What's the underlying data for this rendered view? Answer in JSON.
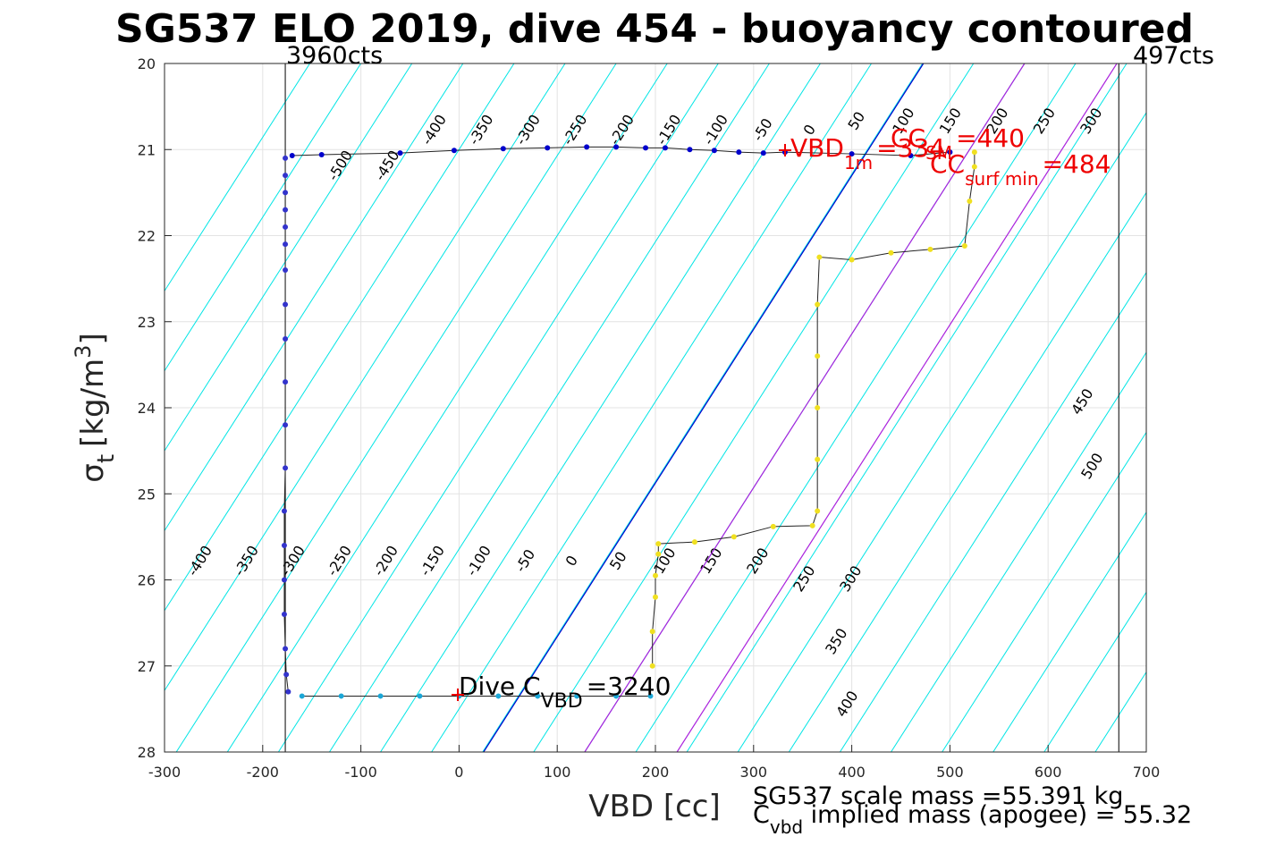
{
  "chart_data": {
    "type": "scatter",
    "title": "SG537 ELO 2019, dive 454 - buoyancy contoured",
    "xlabel": "VBD [cc]",
    "ylabel_main": "σ",
    "ylabel_sub": "t",
    "ylabel_unit": "[kg/m",
    "ylabel_sup": "3",
    "ylabel_close": "]",
    "xlim": [
      -300,
      700
    ],
    "ylim": [
      20,
      28
    ],
    "y_reversed": true,
    "grid": true,
    "xticks": [
      "-300",
      "-200",
      "-100",
      "0",
      "100",
      "200",
      "300",
      "400",
      "500",
      "600",
      "700"
    ],
    "yticks": [
      "20",
      "21",
      "22",
      "23",
      "24",
      "25",
      "26",
      "27",
      "28"
    ],
    "xtick_values": [
      -300,
      -200,
      -100,
      0,
      100,
      200,
      300,
      400,
      500,
      600,
      700
    ],
    "ytick_values": [
      20,
      21,
      22,
      23,
      24,
      25,
      26,
      27,
      28
    ],
    "vlines": [
      {
        "label": "3960cts",
        "x": -177
      },
      {
        "label": "497cts",
        "x": 672
      }
    ],
    "contour_levels_upper": [
      "-500",
      "-450",
      "-400",
      "-350",
      "-300",
      "-250",
      "-200",
      "-150",
      "-100",
      "-50",
      "0",
      "50",
      "100",
      "150",
      "200",
      "250",
      "300"
    ],
    "contour_levels_lower": [
      "-400",
      "-350",
      "-300",
      "-250",
      "-200",
      "-150",
      "-100",
      "-50",
      "0",
      "50",
      "100",
      "150",
      "200",
      "250",
      "300",
      "350",
      "400",
      "450",
      "500"
    ],
    "annotations": {
      "dive_c_main": "Dive C",
      "dive_c_sub": "VBD",
      "dive_c_val": "=3240",
      "vbd_main": "VBD",
      "vbd_sub": "1m",
      "vbd_val": "=334",
      "cc_sm_main": "CC",
      "cc_sm_sub": "SM",
      "cc_sm_val": "=440",
      "cc_surf_main": "CC",
      "cc_surf_sub": "surf min",
      "cc_surf_val": "=484",
      "scale_mass": "SG537 scale mass =55.391 kg",
      "implied_main": "C",
      "implied_sub": "vbd",
      "implied_text": " implied mass (apogee) = 55.32"
    },
    "series": [
      {
        "name": "",
        "color": "#0000cc",
        "points": [
          [
            -170,
            21.07
          ],
          [
            -140,
            21.06
          ],
          [
            -60,
            21.04
          ],
          [
            -5,
            21.01
          ],
          [
            45,
            20.99
          ],
          [
            90,
            20.98
          ],
          [
            130,
            20.97
          ],
          [
            160,
            20.97
          ],
          [
            190,
            20.98
          ],
          [
            210,
            20.98
          ],
          [
            235,
            21
          ],
          [
            260,
            21.01
          ],
          [
            285,
            21.03
          ],
          [
            310,
            21.04
          ],
          [
            332,
            21.03
          ],
          [
            400,
            21.05
          ],
          [
            460,
            21.07
          ],
          [
            500,
            21.03
          ]
        ]
      },
      {
        "name": "",
        "color": "#3333cc",
        "points": [
          [
            -177,
            21.1
          ],
          [
            -177,
            21.3
          ],
          [
            -177,
            21.5
          ],
          [
            -177,
            21.7
          ],
          [
            -177,
            21.9
          ],
          [
            -177,
            22.1
          ],
          [
            -177,
            22.4
          ],
          [
            -177,
            22.8
          ],
          [
            -177,
            23.2
          ],
          [
            -177,
            23.7
          ],
          [
            -177,
            24.2
          ],
          [
            -177,
            24.7
          ],
          [
            -178,
            25.2
          ],
          [
            -178,
            25.6
          ],
          [
            -178,
            26
          ],
          [
            -178,
            26.4
          ],
          [
            -177,
            26.8
          ],
          [
            -176,
            27.1
          ],
          [
            -174,
            27.3
          ]
        ]
      },
      {
        "name": "",
        "color": "#1ca7d7",
        "points": [
          [
            -160,
            27.35
          ],
          [
            -120,
            27.35
          ],
          [
            -80,
            27.35
          ],
          [
            -40,
            27.35
          ],
          [
            0,
            27.35
          ],
          [
            40,
            27.35
          ],
          [
            80,
            27.35
          ],
          [
            120,
            27.35
          ],
          [
            160,
            27.35
          ],
          [
            195,
            27.35
          ]
        ]
      },
      {
        "name": "",
        "color": "#f0e020",
        "points": [
          [
            197,
            27.0
          ],
          [
            197,
            26.6
          ],
          [
            200,
            26.2
          ],
          [
            200,
            25.95
          ],
          [
            203,
            25.7
          ],
          [
            203,
            25.58
          ],
          [
            240,
            25.56
          ],
          [
            280,
            25.5
          ],
          [
            320,
            25.38
          ],
          [
            360,
            25.37
          ],
          [
            365,
            25.2
          ],
          [
            365,
            24.6
          ],
          [
            365,
            24.0
          ],
          [
            365,
            23.4
          ],
          [
            365,
            22.8
          ],
          [
            367,
            22.25
          ],
          [
            400,
            22.28
          ],
          [
            440,
            22.2
          ],
          [
            480,
            22.16
          ],
          [
            515,
            22.12
          ],
          [
            520,
            21.6
          ],
          [
            525,
            21.2
          ],
          [
            525,
            21.03
          ]
        ]
      }
    ]
  }
}
